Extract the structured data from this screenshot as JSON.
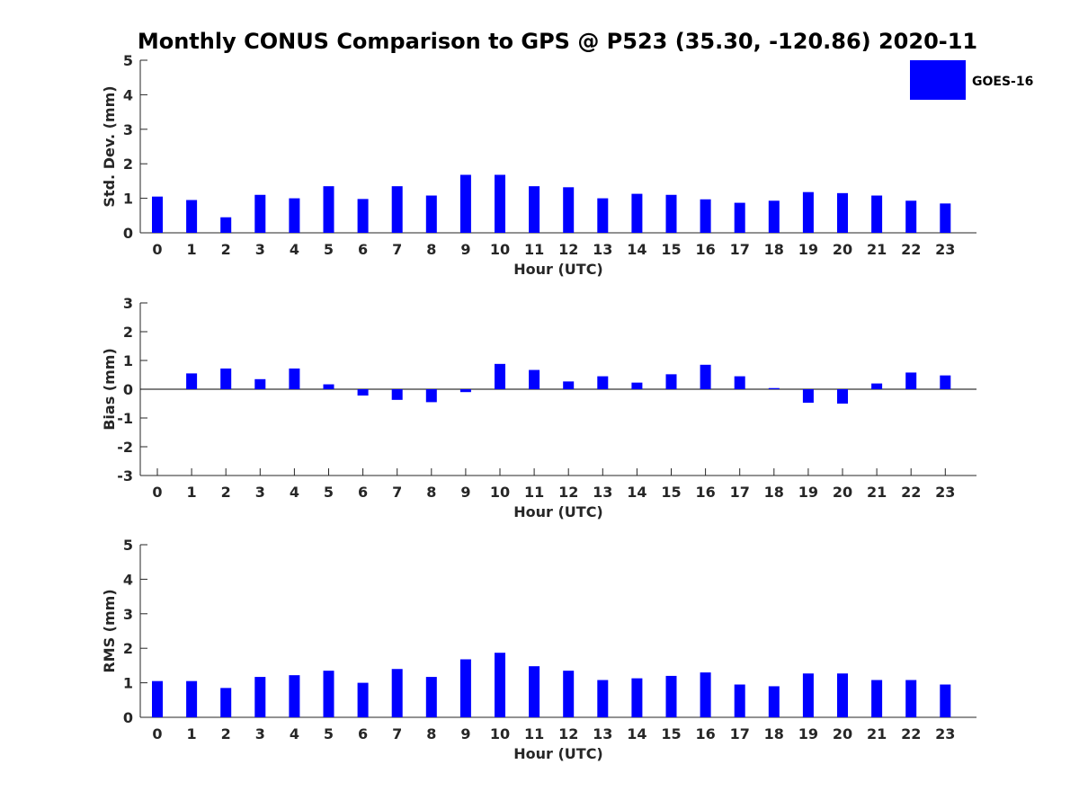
{
  "chart_data": {
    "title": "Monthly CONUS Comparison to GPS @ P523 (35.30, -120.86) 2020-11",
    "legend": {
      "label": "GOES-16",
      "color": "#0000ff",
      "placement": "top-right"
    },
    "categories": [
      0,
      1,
      2,
      3,
      4,
      5,
      6,
      7,
      8,
      9,
      10,
      11,
      12,
      13,
      14,
      15,
      16,
      17,
      18,
      19,
      20,
      21,
      22,
      23
    ],
    "panels": [
      {
        "type": "bar",
        "ylabel": "Std. Dev. (mm)",
        "xlabel": "Hour (UTC)",
        "ylim": [
          0,
          5
        ],
        "yticks": [
          0,
          1,
          2,
          3,
          4,
          5
        ],
        "series": [
          {
            "name": "GOES-16",
            "values": [
              1.05,
              0.95,
              0.45,
              1.1,
              1.0,
              1.35,
              0.98,
              1.35,
              1.08,
              1.68,
              1.68,
              1.35,
              1.32,
              1.0,
              1.13,
              1.1,
              0.97,
              0.87,
              0.93,
              1.18,
              1.15,
              1.08,
              0.93,
              0.85
            ]
          }
        ]
      },
      {
        "type": "bar",
        "ylabel": "Bias (mm)",
        "xlabel": "Hour (UTC)",
        "ylim": [
          -3,
          3
        ],
        "yticks": [
          -3,
          -2,
          -1,
          0,
          1,
          2,
          3
        ],
        "series": [
          {
            "name": "GOES-16",
            "values": [
              0.0,
              0.55,
              0.72,
              0.35,
              0.72,
              0.17,
              -0.22,
              -0.37,
              -0.45,
              -0.1,
              0.88,
              0.67,
              0.27,
              0.45,
              0.23,
              0.52,
              0.85,
              0.45,
              0.04,
              -0.47,
              -0.5,
              0.2,
              0.58,
              0.48
            ]
          }
        ]
      },
      {
        "type": "bar",
        "ylabel": "RMS (mm)",
        "xlabel": "Hour (UTC)",
        "ylim": [
          0,
          5
        ],
        "yticks": [
          0,
          1,
          2,
          3,
          4,
          5
        ],
        "series": [
          {
            "name": "GOES-16",
            "values": [
              1.05,
              1.05,
              0.85,
              1.17,
              1.22,
              1.35,
              1.0,
              1.4,
              1.17,
              1.68,
              1.87,
              1.48,
              1.35,
              1.08,
              1.13,
              1.2,
              1.3,
              0.95,
              0.9,
              1.27,
              1.27,
              1.08,
              1.08,
              0.95
            ]
          }
        ]
      }
    ]
  }
}
